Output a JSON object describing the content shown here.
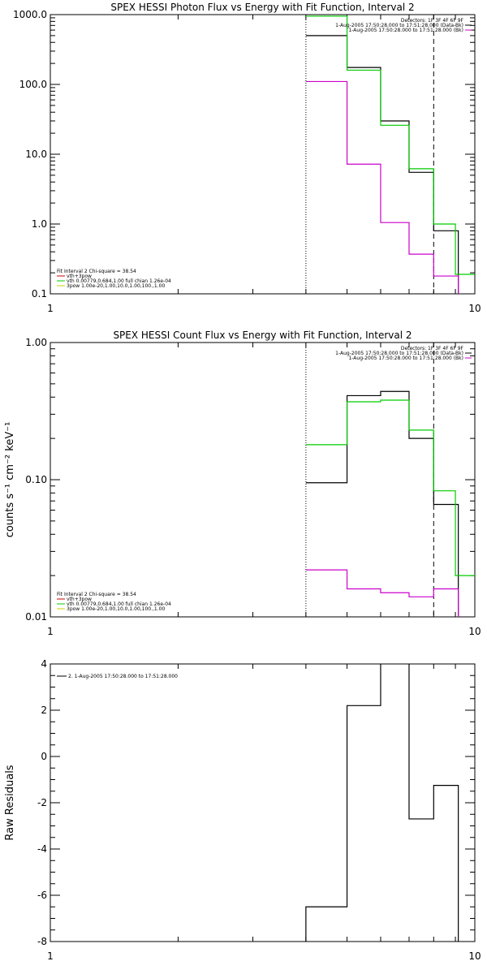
{
  "chart_data": [
    {
      "type": "line",
      "title": "SPEX HESSI Photon Flux vs Energy with Fit Function, Interval 2",
      "xlabel": "",
      "ylabel": "",
      "xscale": "log",
      "yscale": "log",
      "xlim": [
        1,
        10
      ],
      "ylim": [
        0.1,
        1000
      ],
      "xticks": [
        1,
        10
      ],
      "xtick_labels": [
        "1",
        "10"
      ],
      "yticks": [
        0.1,
        1,
        10,
        100,
        1000
      ],
      "ytick_labels": [
        "0.1",
        "1.0",
        "10.0",
        "100.0",
        "1000.0"
      ],
      "vlines": [
        {
          "x": 4.0,
          "style": "dotted",
          "color": "#000000"
        },
        {
          "x": 8.0,
          "style": "dashed",
          "color": "#000000"
        }
      ],
      "legend_tr": [
        {
          "text": "Detectors: 1F 3F 4F 6F 9F",
          "color": null
        },
        {
          "text": "1-Aug-2005 17:50:28.000 to 17:51:28.000 (Data-Bk)",
          "color": "#000000"
        },
        {
          "text": "1-Aug-2005 17:50:28.000 to 17:51:28.000 (Bk)",
          "color": "#cc00cc"
        }
      ],
      "legend_bl": [
        {
          "text": "Fit Interval 2   Chi-square = 38.54",
          "color": null
        },
        {
          "text": "vth+3pow",
          "color": "#cc0000"
        },
        {
          "text": "vth 0.00779,0.684,1.00  full chian 1.26e-04",
          "color": "#00cc00"
        },
        {
          "text": "3pow 1.00e-20,1.00,10.0,1.00,100.,1.00",
          "color": "#cccc00"
        }
      ],
      "series": [
        {
          "color": "#000000",
          "edges": [
            4,
            5,
            6,
            7,
            8
          ],
          "values": [
            500,
            175,
            30,
            5.5,
            0.8
          ]
        },
        {
          "color": "#00cc00",
          "edges": [
            4,
            5,
            6,
            7,
            8,
            9
          ],
          "values": [
            950,
            160,
            26,
            6.2,
            1.0,
            0.19
          ]
        },
        {
          "color": "#cc00cc",
          "edges": [
            4,
            5,
            6,
            7,
            8
          ],
          "values": [
            110,
            7.2,
            1.05,
            0.37,
            0.18
          ]
        }
      ]
    },
    {
      "type": "line",
      "title": "SPEX HESSI Count Flux vs Energy with Fit Function, Interval 2",
      "xlabel": "",
      "ylabel": "counts s⁻¹ cm⁻² keV⁻¹",
      "xscale": "log",
      "yscale": "log",
      "xlim": [
        1,
        10
      ],
      "ylim": [
        0.01,
        1
      ],
      "xticks": [
        1,
        10
      ],
      "xtick_labels": [
        "1",
        "10"
      ],
      "yticks": [
        0.01,
        0.1,
        1
      ],
      "ytick_labels": [
        "0.01",
        "0.10",
        "1.00"
      ],
      "vlines": [
        {
          "x": 4.0,
          "style": "dotted",
          "color": "#000000"
        },
        {
          "x": 8.0,
          "style": "dashed",
          "color": "#000000"
        }
      ],
      "legend_tr": [
        {
          "text": "Detectors: 1F 3F 4F 6F 9F",
          "color": null
        },
        {
          "text": "1-Aug-2005 17:50:28.000 to 17:51:28.000 (Data-Bk)",
          "color": "#000000"
        },
        {
          "text": "1-Aug-2005 17:50:28.000 to 17:51:28.000 (Bk)",
          "color": "#cc00cc"
        }
      ],
      "legend_bl": [
        {
          "text": "Fit Interval 2   Chi-square = 38.54",
          "color": null
        },
        {
          "text": "vth+3pow",
          "color": "#cc0000"
        },
        {
          "text": "vth 0.00779,0.684,1.00  full chian 1.26e-04",
          "color": "#00cc00"
        },
        {
          "text": "3pow 1.00e-20,1.00,10.0,1.00,100.,1.00",
          "color": "#cccc00"
        }
      ],
      "series": [
        {
          "color": "#000000",
          "edges": [
            4,
            5,
            6,
            7,
            8
          ],
          "values": [
            0.095,
            0.41,
            0.44,
            0.2,
            0.066
          ]
        },
        {
          "color": "#00cc00",
          "edges": [
            4,
            5,
            6,
            7,
            8,
            9
          ],
          "values": [
            0.18,
            0.37,
            0.38,
            0.23,
            0.083,
            0.02
          ]
        },
        {
          "color": "#cc00cc",
          "edges": [
            4,
            5,
            6,
            7,
            8
          ],
          "values": [
            0.022,
            0.016,
            0.015,
            0.014,
            0.016
          ]
        }
      ]
    },
    {
      "type": "line",
      "title": "",
      "xlabel": "",
      "ylabel": "Raw Residuals",
      "xscale": "log",
      "yscale": "linear",
      "xlim": [
        1,
        10
      ],
      "ylim": [
        -8,
        4
      ],
      "xticks": [
        1,
        10
      ],
      "xtick_labels": [
        "1",
        "10"
      ],
      "yticks": [
        -8,
        -6,
        -4,
        -2,
        0,
        2,
        4
      ],
      "ytick_labels": [
        "-8",
        "-6",
        "-4",
        "-2",
        "0",
        "2",
        "4"
      ],
      "vlines": [],
      "legend_tr": [],
      "legend_tl": [
        {
          "text": "2. 1-Aug-2005 17:50:28.000 to 17:51:28.000",
          "color": "#000000"
        }
      ],
      "legend_bl": [],
      "series": [
        {
          "color": "#000000",
          "edges": [
            4,
            5,
            6,
            7,
            8
          ],
          "values": [
            -6.5,
            2.2,
            4.05,
            -2.7,
            -1.25
          ],
          "drop_to_bottom": true
        }
      ]
    }
  ]
}
